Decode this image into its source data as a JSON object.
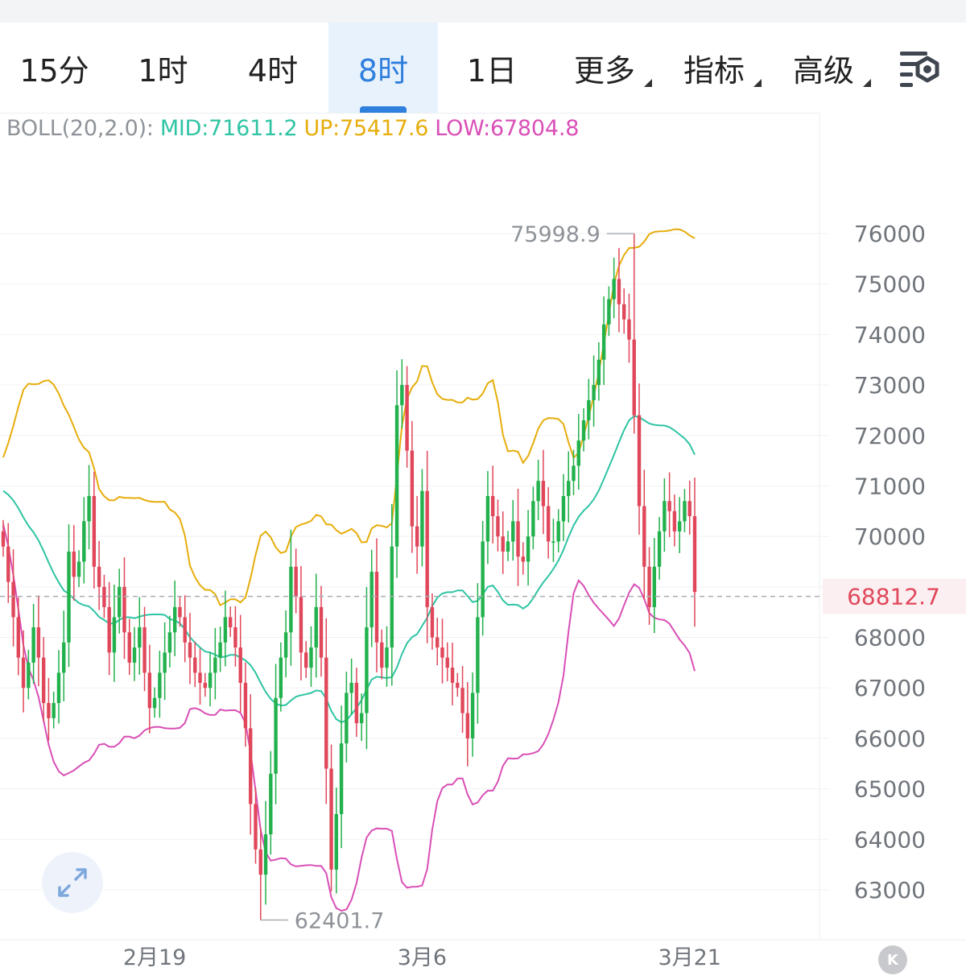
{
  "tabs": [
    {
      "label": "15分",
      "active": false,
      "dropdown": false
    },
    {
      "label": "1时",
      "active": false,
      "dropdown": false
    },
    {
      "label": "4时",
      "active": false,
      "dropdown": false
    },
    {
      "label": "8时",
      "active": true,
      "dropdown": false
    },
    {
      "label": "1日",
      "active": false,
      "dropdown": false
    },
    {
      "label": "更多",
      "active": false,
      "dropdown": true
    },
    {
      "label": "指标",
      "active": false,
      "dropdown": true
    },
    {
      "label": "高级",
      "active": false,
      "dropdown": true
    }
  ],
  "settings_icon": "chart-settings-icon",
  "legend": {
    "name": "BOLL(20,2.0):",
    "mid": "MID:71611.2",
    "up": "UP:75417.6",
    "low": "LOW:67804.8"
  },
  "colors": {
    "accent": "#2f7fdd",
    "up_candle": "#22b14c",
    "down_candle": "#e0475a",
    "mid": "#2fc4a3",
    "upper": "#e6ad0c",
    "lower": "#d94fb6",
    "price_tag": "#e0475a"
  },
  "zoom_icon": "expand-arrows-icon",
  "k_button_label": "K",
  "chart_data": {
    "type": "candlestick",
    "indicator": "BOLL(20,2.0)",
    "ylim": [
      62200,
      76500
    ],
    "yticks": [
      63000,
      64000,
      65000,
      66000,
      67000,
      68000,
      69000,
      70000,
      71000,
      72000,
      73000,
      74000,
      75000,
      76000
    ],
    "ytick_labels": [
      "63000",
      "64000",
      "65000",
      "66000",
      "67000",
      "68000",
      "",
      "70000",
      "71000",
      "72000",
      "73000",
      "74000",
      "75000",
      "76000"
    ],
    "xtick_labels": [
      "2月19",
      "3月6",
      "3月21"
    ],
    "xtick_index": [
      30,
      83,
      136
    ],
    "last_price": "68812.7",
    "last_price_value": 68812.7,
    "max_label": "75998.9",
    "max_value": 75998.9,
    "max_index": 125,
    "min_label": "62401.7",
    "min_value": 62401.7,
    "min_index": 51,
    "closes": [
      69800,
      69100,
      68400,
      67600,
      67000,
      67500,
      68200,
      67600,
      66700,
      66400,
      66700,
      67300,
      67900,
      69700,
      69200,
      69500,
      70300,
      70800,
      69400,
      69000,
      68600,
      67700,
      68400,
      69000,
      68100,
      67500,
      67800,
      68200,
      67300,
      66600,
      66800,
      67300,
      67700,
      68100,
      68600,
      68400,
      67900,
      67600,
      67300,
      67100,
      67000,
      67300,
      67600,
      67900,
      68400,
      68200,
      67800,
      67100,
      66200,
      64700,
      63800,
      63300,
      64100,
      65300,
      66800,
      67600,
      68100,
      69400,
      68800,
      67700,
      67400,
      67800,
      68600,
      67600,
      65400,
      63400,
      64500,
      65900,
      66900,
      67100,
      66300,
      66500,
      68200,
      69300,
      67900,
      67400,
      67800,
      69800,
      72600,
      73000,
      71700,
      70200,
      69800,
      70900,
      68600,
      68000,
      67800,
      67600,
      67400,
      67100,
      67000,
      66500,
      66000,
      66900,
      68400,
      69900,
      70800,
      70400,
      70000,
      69700,
      69900,
      70300,
      69600,
      69500,
      70000,
      70700,
      71100,
      70600,
      69900,
      69900,
      70300,
      70800,
      71100,
      71400,
      71900,
      72300,
      72700,
      73000,
      73500,
      74200,
      74700,
      75100,
      74600,
      74300,
      73900,
      72400,
      70600,
      69400,
      68600,
      69400,
      70100,
      70700,
      70500,
      70100,
      70300,
      70700,
      70400,
      68900
    ]
  }
}
